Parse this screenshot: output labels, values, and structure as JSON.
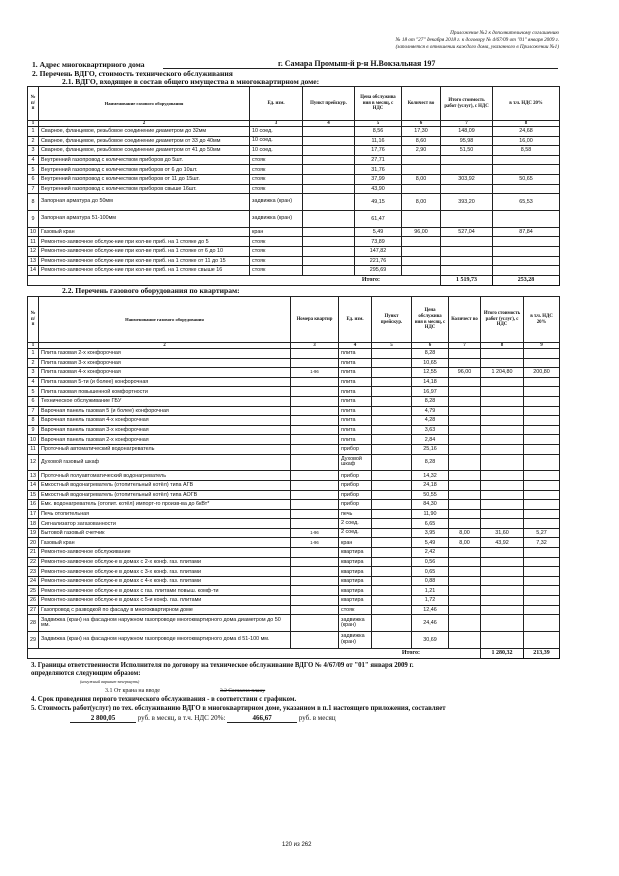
{
  "annex": {
    "line1": "Приложение №2 к дополнительному соглашению",
    "line2": "№ 18 от \"27\" декабря 2018 г. к договору № 4/67/09 от \"01\" января 2009 г.",
    "line3": "(заполняется в отношении каждого дома, указанного в Приложении №1)"
  },
  "section1": {
    "label": "1. Адрес многоквартирного дома",
    "value": "г. Самара Промыш-й р-н Н.Вокзальная 197"
  },
  "section2": {
    "label": "2. Перечень ВДГО, стоимость технического обслуживания"
  },
  "table1": {
    "title": "2.1. ВДГО, входящее в состав общего имущества в многоквартирном доме:",
    "headers": [
      "№ п/п",
      "Наименование газового оборудования",
      "Ед. изм.",
      "Пункт прейскур.",
      "Цена обслужива ния в месяц, с НДС",
      "Количест во",
      "Итого стоимость работ (услуг), с НДС",
      "в т.ч. НДС 20%"
    ],
    "col_numbers": [
      "1",
      "2",
      "3",
      "4",
      "5",
      "6",
      "7",
      "8"
    ],
    "rows": [
      [
        "1",
        "Сварное, фланцевое, резьбовое соединение  диаметром до 32мм",
        "10 соед.",
        "",
        "8,56",
        "17,30",
        "148,09",
        "24,68"
      ],
      [
        "2",
        "Сварное, фланцевое, резьбовое соединение  диаметром от 33 до 40мм",
        "10 соед.",
        "",
        "11,16",
        "8,60",
        "95,98",
        "16,00"
      ],
      [
        "3",
        "Сварное, фланцевое, резьбовое соединение  диаметром от 41 до 50мм",
        "10 соед.",
        "",
        "17,76",
        "2,90",
        "51,50",
        "8,58"
      ],
      [
        "4",
        "Внутренний газопровод с количеством  приборов до 5шт.",
        "стояк",
        "",
        "27,71",
        "",
        "",
        ""
      ],
      [
        "5",
        "Внутренний газопровод с количеством  приборов от 6 до 10шт.",
        "стояк",
        "",
        "31,76",
        "",
        "",
        ""
      ],
      [
        "6",
        "Внутренний газопровод с количеством  приборов от 11 до 15шт.",
        "стояк",
        "",
        "37,99",
        "8,00",
        "303,92",
        "50,65"
      ],
      [
        "7",
        "Внутренний газопровод с количеством  приборов свыше 16шт.",
        "стояк",
        "",
        "43,90",
        "",
        "",
        ""
      ],
      [
        "8",
        "Запорная арматура до 50мм",
        "задвижка (кран)",
        "",
        "49,15",
        "8,00",
        "393,20",
        "65,53"
      ],
      [
        "9",
        "Запорная арматура 51-100мм",
        "задвижка (кран)",
        "",
        "61,47",
        "",
        "",
        ""
      ],
      [
        "10",
        "Газовый кран",
        "кран",
        "",
        "5,49",
        "96,00",
        "527,04",
        "87,84"
      ],
      [
        "11",
        "Ремонтно-заявочное обслуж-ние при кол-ве приб. на 1 стояке до 5",
        "стояк",
        "",
        "73,89",
        "",
        "",
        ""
      ],
      [
        "12",
        "Ремонтно-заявочное обслуж-ние при кол-ве приб. на 1 стояке от 6 до 10",
        "стояк",
        "",
        "147,82",
        "",
        "",
        ""
      ],
      [
        "13",
        "Ремонтно-заявочное обслуж-ние при кол-ве приб. на 1 стояке от 11 до 15",
        "стояк",
        "",
        "221,76",
        "",
        "",
        ""
      ],
      [
        "14",
        "Ремонтно-заявочное обслуж-ние при кол-ве приб. на 1 стояке свыше 16",
        "стояк",
        "",
        "295,69",
        "",
        "",
        ""
      ]
    ],
    "total_label": "Итого:",
    "total_sum": "1 519,73",
    "total_vat": "253,28"
  },
  "table2": {
    "title": "2.2. Перечень газового оборудования  по квартирам:",
    "headers": [
      "№ п/п",
      "Наименование газового оборудования",
      "Номера квартир",
      "Ед. изм.",
      "Пункт прейскур.",
      "Цена обслужива ния в месяц, с НДС",
      "Количест во",
      "Итого стоимость работ (услуг), с НДС",
      "в т.ч. НДС 20%"
    ],
    "col_numbers": [
      "1",
      "2",
      "3",
      "4",
      "5",
      "6",
      "7",
      "8",
      "9"
    ],
    "rows": [
      [
        "1",
        "Плита газовая 2-х конфорочная",
        "",
        "плита",
        "",
        "8,28",
        "",
        "",
        ""
      ],
      [
        "2",
        "Плита газовая 3-х конфорочная",
        "",
        "плита",
        "",
        "10,65",
        "",
        "",
        ""
      ],
      [
        "3",
        "Плита газовая 4-х конфорочная",
        "1-96",
        "плита",
        "",
        "12,55",
        "96,00",
        "1 204,80",
        "200,80"
      ],
      [
        "4",
        "Плита газовая 5-ти (и более) конфорочная",
        "",
        "плита",
        "",
        "14,18",
        "",
        "",
        ""
      ],
      [
        "5",
        "Плита газовая повышенной комфортности",
        "",
        "плита",
        "",
        "16,97",
        "",
        "",
        ""
      ],
      [
        "6",
        "Техническое обслуживание ГБУ",
        "",
        "плита",
        "",
        "8,28",
        "",
        "",
        ""
      ],
      [
        "7",
        "Варочная панель газовая 5 (и более) конфорочная",
        "",
        "плита",
        "",
        "4,79",
        "",
        "",
        ""
      ],
      [
        "8",
        "Варочная панель газовая 4-х конфорочная",
        "",
        "плита",
        "",
        "4,28",
        "",
        "",
        ""
      ],
      [
        "9",
        "Варочная панель газовая 3-х конфорочная",
        "",
        "плита",
        "",
        "3,63",
        "",
        "",
        ""
      ],
      [
        "10",
        "Варочная панель газовая 2-х конфорочная",
        "",
        "плита",
        "",
        "2,84",
        "",
        "",
        ""
      ],
      [
        "11",
        "Проточный автоматический водонагреватель",
        "",
        "прибор",
        "",
        "25,16",
        "",
        "",
        ""
      ],
      [
        "12",
        "Духовой газовый шкаф",
        "",
        "Духовой шкаф",
        "",
        "8,28",
        "",
        "",
        ""
      ],
      [
        "13",
        "Проточный полуавтоматический водонагреватель",
        "",
        "прибор",
        "",
        "14,32",
        "",
        "",
        ""
      ],
      [
        "14",
        "Емкостный водонагреватель (отопительный котёл) типа АГВ",
        "",
        "прибор",
        "",
        "24,18",
        "",
        "",
        ""
      ],
      [
        "15",
        "Емкостный водонагреватель (отопительный котёл) типа АОГВ",
        "",
        "прибор",
        "",
        "50,55",
        "",
        "",
        ""
      ],
      [
        "16",
        "Емк. водонагреватель (отопит. котёл) импорт-го произв-ва до 6кВт*",
        "",
        "прибор",
        "",
        "84,30",
        "",
        "",
        ""
      ],
      [
        "17",
        "Печь отопительная",
        "",
        "печь",
        "",
        "11,90",
        "",
        "",
        ""
      ],
      [
        "18",
        "Сигнализатор загазованности",
        "",
        "2 соед.",
        "",
        "6,65",
        "",
        "",
        ""
      ],
      [
        "19",
        "Бытовой газовый счетчик",
        "1-96",
        "2 соед.",
        "",
        "3,95",
        "8,00",
        "31,60",
        "5,27"
      ],
      [
        "20",
        "Газовый кран",
        "1-96",
        "кран",
        "",
        "5,49",
        "8,00",
        "43,92",
        "7,32"
      ],
      [
        "21",
        "Ремонтно-заявочное обслуживание",
        "",
        "квартира",
        "",
        "2,42",
        "",
        "",
        ""
      ],
      [
        "22",
        "Ремонтно-заявочное обслуж-е в домах с 2-х конф. газ. плитами",
        "",
        "квартира",
        "",
        "0,56",
        "",
        "",
        ""
      ],
      [
        "23",
        "Ремонтно-заявочное обслуж-е в домах с 3-х конф. газ. плитами",
        "",
        "квартира",
        "",
        "0,65",
        "",
        "",
        ""
      ],
      [
        "24",
        "Ремонтно-заявочное обслуж-е в домах с 4-х конф. газ. плитами",
        "",
        "квартира",
        "",
        "0,88",
        "",
        "",
        ""
      ],
      [
        "25",
        "Ремонтно-заявочное обслуж-е в домах с газ. плитами повыш. комф-ти",
        "",
        "квартира",
        "",
        "1,21",
        "",
        "",
        ""
      ],
      [
        "26",
        "Ремонтно-заявочное обслуж-е в домах с 5-и конф. газ. плитами",
        "",
        "квартира",
        "",
        "1,72",
        "",
        "",
        ""
      ],
      [
        "27",
        "Газопровод с разводкой по фасаду в многоквартирном доме",
        "",
        "стояк",
        "",
        "12,46",
        "",
        "",
        ""
      ],
      [
        "28",
        "Задвижка (кран) на фасадном наружном газопроводе многоквартирного дома диаметром до 50 мм.",
        "",
        "задвижка (кран)",
        "",
        "24,46",
        "",
        "",
        ""
      ],
      [
        "29",
        "Задвижка (кран) на фасадном наружном газопроводе многоквартирного дома d 51-100 мм.",
        "",
        "задвижка (кран)",
        "",
        "30,69",
        "",
        "",
        ""
      ]
    ],
    "total_label": "Итого:",
    "total_sum": "1 280,32",
    "total_vat": "213,39"
  },
  "section3": {
    "line1": "3. Границы ответственности Исполнителя по договору на техническое обслуживание ВДГО № 4/67/09 от \"01\" января 2009 г.",
    "line2": "определяются следующим образом:",
    "note": "(ненужный вариант зачеркнуть)",
    "opt1": "3.1 От крана на вводе",
    "opt2": "3.2 Согласно плану"
  },
  "section4": {
    "text": "4. Срок проведения первого технического обслуживания - в соответствии с графиком."
  },
  "section5": {
    "text": "5. Стоимость работ(услуг) по тех. обслуживанию ВДГО в многоквартирном доме, указанном в п.1 настоящего приложения, составляет",
    "amount": "2 800,05",
    "per_month": "руб. в месяц, в т.ч. НДС 20%:",
    "vat": "466,67",
    "per_month2": "руб. в месяц"
  },
  "footer": {
    "page": "120 из 262"
  }
}
